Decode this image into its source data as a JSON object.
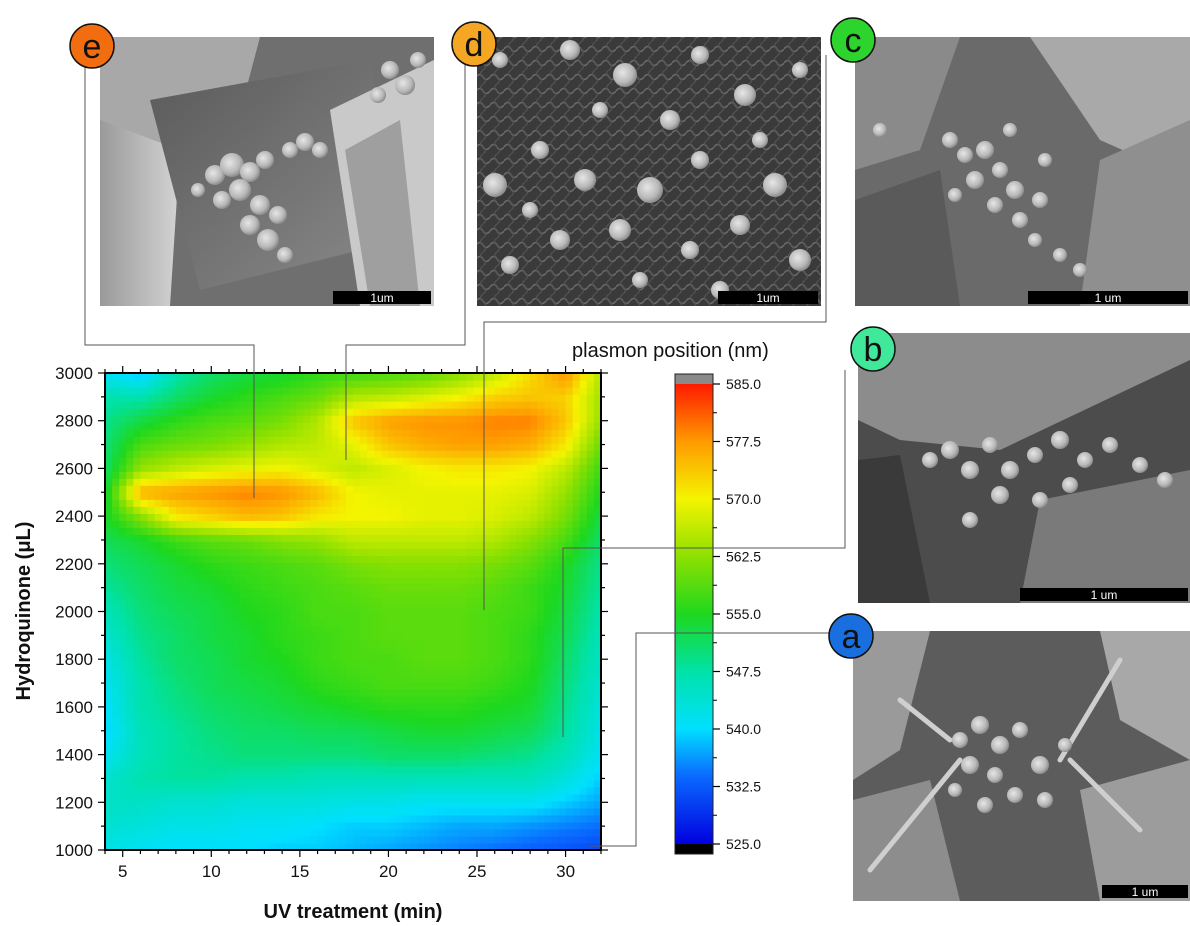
{
  "chart_data": {
    "type": "heatmap",
    "xlabel": "UV treatment (min)",
    "ylabel": "Hydroquinone (μL)",
    "xlim": [
      4,
      32
    ],
    "ylim": [
      1000,
      3000
    ],
    "x_ticks": [
      5,
      10,
      15,
      20,
      25,
      30
    ],
    "y_ticks": [
      1000,
      1200,
      1400,
      1600,
      1800,
      2000,
      2200,
      2400,
      2600,
      2800,
      3000
    ],
    "x": [
      4,
      6,
      8,
      10,
      12,
      14,
      16,
      18,
      20,
      22,
      24,
      26,
      28,
      30,
      32
    ],
    "y": [
      1000,
      1100,
      1200,
      1300,
      1400,
      1500,
      1600,
      1700,
      1800,
      1900,
      2000,
      2100,
      2200,
      2300,
      2400,
      2500,
      2600,
      2700,
      2800,
      2900,
      3000
    ],
    "z": [
      [
        542,
        541,
        540,
        540,
        540,
        539,
        539,
        538,
        537,
        536,
        535,
        534,
        533,
        532,
        531
      ],
      [
        544,
        543,
        542,
        542,
        541,
        541,
        540,
        539,
        539,
        538,
        537,
        537,
        536,
        535,
        534
      ],
      [
        545,
        545,
        544,
        544,
        543,
        543,
        543,
        542,
        542,
        541,
        541,
        541,
        541,
        539,
        537
      ],
      [
        544,
        547,
        548,
        548,
        547,
        547,
        546,
        546,
        546,
        546,
        546,
        546,
        546,
        543,
        539
      ],
      [
        541,
        546,
        548,
        549,
        550,
        550,
        550,
        550,
        551,
        551,
        551,
        550,
        549,
        546,
        541
      ],
      [
        539,
        546,
        548,
        550,
        551,
        551,
        552,
        552,
        553,
        554,
        554,
        553,
        552,
        548,
        542
      ],
      [
        540,
        547,
        549,
        551,
        552,
        553,
        554,
        555,
        556,
        556,
        556,
        555,
        554,
        549,
        543
      ],
      [
        541,
        547,
        550,
        552,
        553,
        554,
        556,
        557,
        558,
        558,
        558,
        557,
        555,
        550,
        544
      ],
      [
        542,
        548,
        551,
        552,
        554,
        555,
        557,
        558,
        558,
        559,
        559,
        558,
        556,
        551,
        545
      ],
      [
        544,
        549,
        551,
        553,
        554,
        556,
        557,
        558,
        559,
        559,
        559,
        558,
        556,
        552,
        546
      ],
      [
        546,
        550,
        552,
        553,
        555,
        556,
        558,
        558,
        559,
        559,
        559,
        558,
        557,
        553,
        547
      ],
      [
        548,
        551,
        553,
        554,
        556,
        557,
        558,
        559,
        560,
        560,
        560,
        559,
        557,
        554,
        548
      ],
      [
        550,
        552,
        554,
        556,
        557,
        558,
        559,
        561,
        562,
        562,
        562,
        561,
        559,
        555,
        549
      ],
      [
        552,
        554,
        557,
        559,
        560,
        562,
        563,
        566,
        566,
        566,
        566,
        565,
        562,
        558,
        551
      ],
      [
        554,
        562,
        571,
        573,
        575,
        574,
        571,
        570,
        570,
        569,
        569,
        568,
        566,
        561,
        553
      ],
      [
        553,
        576,
        577,
        578,
        579,
        578,
        575,
        570,
        569,
        569,
        569,
        569,
        568,
        563,
        555
      ],
      [
        551,
        563,
        566,
        568,
        569,
        570,
        568,
        566,
        568,
        570,
        571,
        571,
        570,
        566,
        557
      ],
      [
        550,
        558,
        560,
        561,
        563,
        565,
        566,
        569,
        574,
        576,
        577,
        577,
        576,
        571,
        560
      ],
      [
        549,
        553,
        556,
        558,
        559,
        561,
        565,
        574,
        577,
        578,
        578,
        579,
        579,
        574,
        563
      ],
      [
        547,
        547,
        551,
        554,
        556,
        558,
        560,
        565,
        566,
        568,
        570,
        573,
        574,
        573,
        564
      ],
      [
        541,
        538,
        547,
        551,
        553,
        554,
        556,
        557,
        558,
        559,
        562,
        566,
        572,
        578,
        565
      ]
    ],
    "colorbar": {
      "title": "plasmon position (nm)",
      "min": 525.0,
      "max": 585.0,
      "ticks": [
        "585.0",
        "577.5",
        "570.0",
        "562.5",
        "555.0",
        "547.5",
        "540.0",
        "532.5",
        "525.0"
      ]
    },
    "annotations": [
      {
        "label": "e",
        "x": 12.4,
        "y": 2460,
        "color": "#f26d0f"
      },
      {
        "label": "d",
        "x": 17.5,
        "y": 2620,
        "color": "#f5a623"
      },
      {
        "label": "c",
        "x": 25.3,
        "y": 2000,
        "color": "#2dd42d"
      },
      {
        "label": "b",
        "x": 29.7,
        "y": 1470,
        "color": "#40e89a"
      },
      {
        "label": "a",
        "x": 30.5,
        "y": 1010,
        "color": "#1a6fe0"
      }
    ]
  },
  "sem_scale_labels": {
    "e": "1um",
    "d": "1um",
    "c": "1 um",
    "b": "1 um",
    "a": "1 um"
  }
}
